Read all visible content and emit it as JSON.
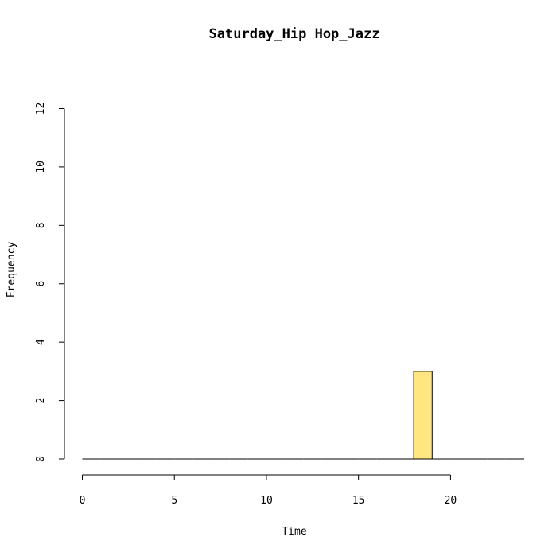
{
  "chart_data": {
    "type": "bar",
    "title": "Saturday_Hip Hop_Jazz",
    "xlabel": "Time",
    "ylabel": "Frequency",
    "bin_width": 1,
    "bin_edges": [
      0,
      1,
      2,
      3,
      4,
      5,
      6,
      7,
      8,
      9,
      10,
      11,
      12,
      13,
      14,
      15,
      16,
      17,
      18,
      19,
      20,
      21,
      22,
      23,
      24
    ],
    "values": [
      0,
      0,
      0,
      0,
      0,
      0,
      0,
      0,
      0,
      0,
      0,
      0,
      0,
      0,
      0,
      0,
      0,
      0,
      3,
      0,
      0,
      0,
      0,
      0
    ],
    "xlim": [
      0,
      24
    ],
    "ylim": [
      0,
      12
    ],
    "x_ticks": [
      0,
      5,
      10,
      15,
      20
    ],
    "y_ticks": [
      0,
      2,
      4,
      6,
      8,
      10,
      12
    ],
    "bar_color": "#FFE680",
    "grid": false,
    "legend": "none"
  }
}
